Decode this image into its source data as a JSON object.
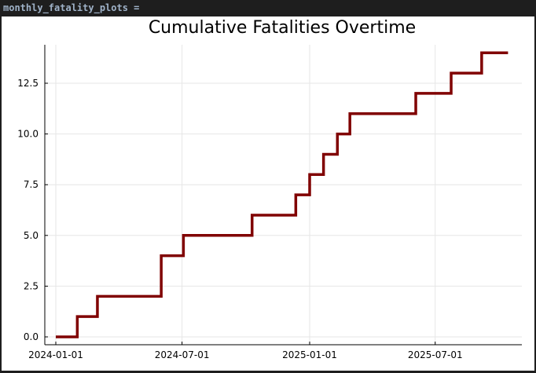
{
  "cell": {
    "variable": "monthly_fatality_plots",
    "suffix": " ="
  },
  "chart_data": {
    "type": "line",
    "step": "post",
    "title": "Cumulative Fatalities Overtime",
    "xlabel": "",
    "ylabel": "",
    "x_ticks": [
      "2024-01-01",
      "2024-07-01",
      "2025-01-01",
      "2025-07-01"
    ],
    "y_ticks": [
      0.0,
      2.5,
      5.0,
      7.5,
      10.0,
      12.5
    ],
    "y_tick_labels": [
      "0.0",
      "2.5",
      "5.0",
      "7.5",
      "10.0",
      "12.5"
    ],
    "xlim": [
      "2024-01-01",
      "2025-10-01"
    ],
    "ylim": [
      0,
      14
    ],
    "grid": true,
    "legend": "none",
    "series": [
      {
        "color": "#800000",
        "points": [
          {
            "x": "2024-01-01",
            "y": 0
          },
          {
            "x": "2024-02-01",
            "y": 1
          },
          {
            "x": "2024-03-01",
            "y": 2
          },
          {
            "x": "2024-06-01",
            "y": 4
          },
          {
            "x": "2024-07-03",
            "y": 5
          },
          {
            "x": "2024-10-10",
            "y": 6
          },
          {
            "x": "2024-12-12",
            "y": 7
          },
          {
            "x": "2025-01-01",
            "y": 8
          },
          {
            "x": "2025-01-21",
            "y": 9
          },
          {
            "x": "2025-02-10",
            "y": 10
          },
          {
            "x": "2025-02-28",
            "y": 11
          },
          {
            "x": "2025-06-03",
            "y": 12
          },
          {
            "x": "2025-07-24",
            "y": 13
          },
          {
            "x": "2025-09-06",
            "y": 14
          },
          {
            "x": "2025-10-14",
            "y": 14
          }
        ]
      }
    ]
  }
}
